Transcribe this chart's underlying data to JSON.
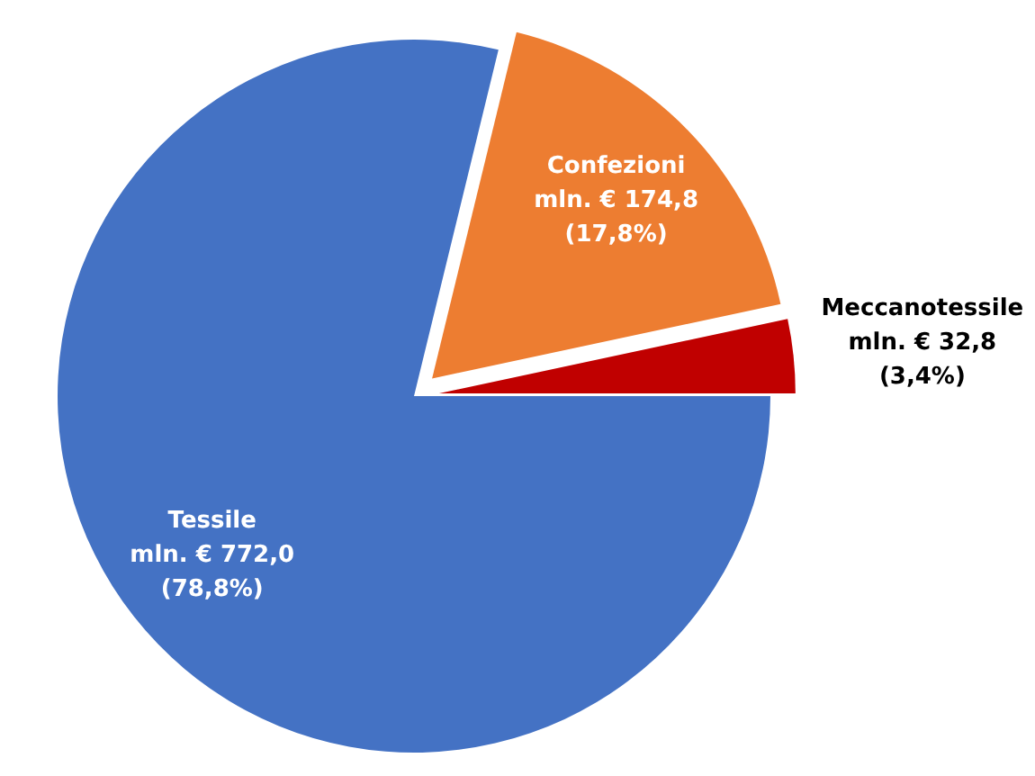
{
  "chart_data": {
    "type": "pie",
    "categories": [
      "Tessile",
      "Confezioni",
      "Meccanotessile"
    ],
    "values": [
      772.0,
      174.8,
      32.8
    ],
    "colors": [
      "#4472c4",
      "#ed7d31",
      "#c00000"
    ],
    "value_labels": [
      "mln. € 772,0\n(78,8%)",
      "mln. € 174,8\n(17,8%)",
      "mln. € 32,8\n(3,4%)"
    ],
    "legend": false
  }
}
